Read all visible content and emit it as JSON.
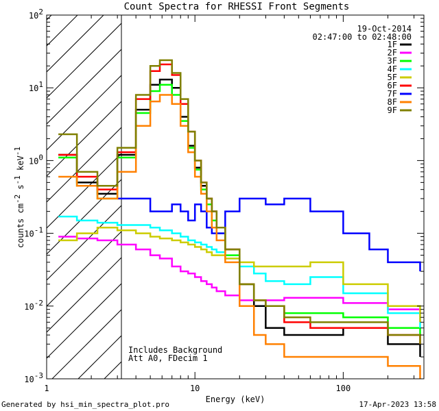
{
  "chart_data": {
    "type": "line",
    "title": "Count Spectra for RHESSI Front Segments",
    "xlabel": "Energy (keV)",
    "ylabel_parts": [
      "counts cm",
      "-2",
      " s",
      "-1",
      " keV",
      "-1"
    ],
    "x_scale": "log",
    "y_scale": "log",
    "xlim": [
      1,
      350
    ],
    "ylim": [
      0.001,
      100
    ],
    "x_ticks": [
      {
        "value": 1,
        "label": "1"
      },
      {
        "value": 10,
        "label": "10"
      },
      {
        "value": 100,
        "label": "100"
      }
    ],
    "y_ticks": [
      {
        "value": 0.001,
        "base": "10",
        "exp": "-3"
      },
      {
        "value": 0.01,
        "base": "10",
        "exp": "-2"
      },
      {
        "value": 0.1,
        "base": "10",
        "exp": "-1"
      },
      {
        "value": 1,
        "base": "10",
        "exp": "0"
      },
      {
        "value": 10,
        "base": "10",
        "exp": "1"
      },
      {
        "value": 100,
        "base": "10",
        "exp": "2"
      }
    ],
    "hatched_region": [
      1,
      3
    ],
    "date": "19-Oct-2014",
    "time_range": "02:47:00 to 02:48:00",
    "annotations": [
      "Includes Background",
      "Att A0, FDecim 1"
    ],
    "series": [
      {
        "name": "1F",
        "color": "#000000",
        "x": [
          1.2,
          1.6,
          2.2,
          3,
          4,
          5,
          5.8,
          7,
          8,
          9,
          10,
          11,
          12,
          13,
          14,
          16,
          20,
          25,
          30,
          40,
          60,
          100,
          200,
          330
        ],
        "y": [
          1.2,
          0.5,
          0.35,
          1.2,
          5,
          11,
          13,
          10,
          4,
          1.6,
          0.8,
          0.45,
          0.3,
          0.2,
          0.12,
          0.06,
          0.02,
          0.01,
          0.005,
          0.004,
          0.004,
          0.005,
          0.003,
          0.002
        ]
      },
      {
        "name": "2F",
        "color": "#ff00ff",
        "x": [
          1.2,
          1.6,
          2.2,
          3,
          4,
          5,
          5.8,
          7,
          8,
          9,
          10,
          11,
          12,
          13,
          14,
          16,
          20,
          25,
          30,
          40,
          60,
          100,
          200,
          330
        ],
        "y": [
          0.09,
          0.085,
          0.08,
          0.07,
          0.06,
          0.05,
          0.045,
          0.035,
          0.03,
          0.028,
          0.025,
          0.022,
          0.02,
          0.018,
          0.016,
          0.014,
          0.012,
          0.012,
          0.012,
          0.013,
          0.013,
          0.011,
          0.009,
          0.006
        ]
      },
      {
        "name": "3F",
        "color": "#00ff00",
        "x": [
          1.2,
          1.6,
          2.2,
          3,
          4,
          5,
          5.8,
          7,
          8,
          9,
          10,
          11,
          12,
          13,
          14,
          16,
          20,
          25,
          30,
          40,
          60,
          100,
          200,
          330
        ],
        "y": [
          1.1,
          0.45,
          0.3,
          1.1,
          4.5,
          9,
          11,
          8,
          3.5,
          1.5,
          0.75,
          0.4,
          0.25,
          0.15,
          0.1,
          0.05,
          0.02,
          0.012,
          0.01,
          0.008,
          0.008,
          0.007,
          0.005,
          0.004
        ]
      },
      {
        "name": "4F",
        "color": "#00ffff",
        "x": [
          1.2,
          1.6,
          2.2,
          3,
          4,
          5,
          5.8,
          7,
          8,
          9,
          10,
          11,
          12,
          13,
          14,
          16,
          20,
          25,
          30,
          40,
          60,
          100,
          200,
          330
        ],
        "y": [
          0.17,
          0.15,
          0.14,
          0.13,
          0.13,
          0.12,
          0.11,
          0.1,
          0.09,
          0.08,
          0.075,
          0.07,
          0.065,
          0.06,
          0.055,
          0.045,
          0.035,
          0.028,
          0.022,
          0.02,
          0.025,
          0.015,
          0.008,
          0.005
        ]
      },
      {
        "name": "5F",
        "color": "#cccc00",
        "x": [
          1.2,
          1.6,
          2.2,
          3,
          4,
          5,
          5.8,
          7,
          8,
          9,
          10,
          11,
          12,
          13,
          14,
          16,
          20,
          25,
          30,
          40,
          60,
          100,
          200,
          330
        ],
        "y": [
          0.08,
          0.1,
          0.12,
          0.11,
          0.1,
          0.09,
          0.085,
          0.08,
          0.075,
          0.07,
          0.065,
          0.06,
          0.055,
          0.05,
          0.05,
          0.045,
          0.04,
          0.035,
          0.035,
          0.035,
          0.04,
          0.02,
          0.01,
          0.006
        ]
      },
      {
        "name": "6F",
        "color": "#ff0000",
        "x": [
          1.2,
          1.6,
          2.2,
          3,
          4,
          5,
          5.8,
          7,
          8,
          9,
          10,
          11,
          12,
          13,
          14,
          16,
          20,
          25,
          30,
          40,
          60,
          100,
          200,
          330
        ],
        "y": [
          1.2,
          0.6,
          0.4,
          1.3,
          7,
          17,
          21,
          15,
          6,
          2.5,
          1,
          0.5,
          0.3,
          0.2,
          0.12,
          0.06,
          0.02,
          0.012,
          0.01,
          0.006,
          0.005,
          0.005,
          0.004,
          0.003
        ]
      },
      {
        "name": "7F",
        "color": "#0000ff",
        "x": [
          3,
          4,
          5,
          7,
          8,
          9,
          10,
          11,
          12,
          13,
          14,
          16,
          20,
          25,
          30,
          40,
          60,
          100,
          150,
          200,
          330
        ],
        "y": [
          0.3,
          0.3,
          0.2,
          0.25,
          0.2,
          0.15,
          0.25,
          0.2,
          0.12,
          0.1,
          0.1,
          0.2,
          0.3,
          0.3,
          0.25,
          0.3,
          0.2,
          0.1,
          0.06,
          0.04,
          0.03
        ]
      },
      {
        "name": "8F",
        "color": "#ff8000",
        "x": [
          1.2,
          1.6,
          2.2,
          3,
          4,
          5,
          5.8,
          7,
          8,
          9,
          10,
          11,
          12,
          13,
          14,
          16,
          20,
          25,
          30,
          40,
          60,
          100,
          200,
          330
        ],
        "y": [
          0.6,
          0.45,
          0.3,
          0.7,
          3,
          6.5,
          8,
          6,
          3,
          1.3,
          0.6,
          0.35,
          0.2,
          0.12,
          0.08,
          0.04,
          0.01,
          0.004,
          0.003,
          0.002,
          0.002,
          0.002,
          0.0015,
          0.001
        ]
      },
      {
        "name": "9F",
        "color": "#808000",
        "x": [
          1.2,
          1.6,
          2.2,
          3,
          4,
          5,
          5.8,
          7,
          8,
          9,
          10,
          11,
          12,
          13,
          14,
          16,
          20,
          25,
          30,
          40,
          60,
          100,
          200,
          330
        ],
        "y": [
          2.3,
          0.7,
          0.45,
          1.5,
          8,
          20,
          24,
          16,
          7,
          2.5,
          1,
          0.5,
          0.3,
          0.2,
          0.12,
          0.06,
          0.02,
          0.012,
          0.01,
          0.007,
          0.006,
          0.006,
          0.004,
          0.003
        ]
      }
    ]
  },
  "footer": {
    "generated_by": "Generated by hsi_min_spectra_plot.pro",
    "date": "17-Apr-2023 13:58"
  }
}
